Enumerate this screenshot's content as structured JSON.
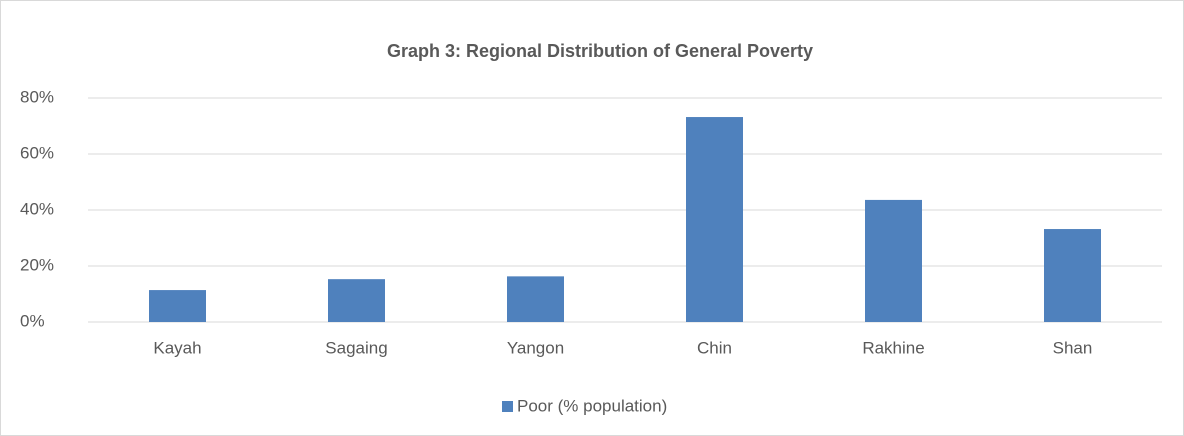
{
  "chart_data": {
    "type": "bar",
    "title": "Graph 3: Regional Distribution of General Poverty",
    "categories": [
      "Kayah",
      "Sagaing",
      "Yangon",
      "Chin",
      "Rakhine",
      "Shan"
    ],
    "series": [
      {
        "name": "Poor (% population)",
        "color": "#4f81bd",
        "values": [
          11.4,
          15.3,
          16.3,
          73.2,
          43.6,
          33.2
        ]
      }
    ],
    "ylim": [
      0,
      80
    ],
    "yticks": [
      {
        "value": 0,
        "label": "0%"
      },
      {
        "value": 20,
        "label": "20%"
      },
      {
        "value": 40,
        "label": "40%"
      },
      {
        "value": 60,
        "label": "60%"
      },
      {
        "value": 80,
        "label": "80%"
      }
    ],
    "grid": true,
    "legend": "bottom"
  }
}
